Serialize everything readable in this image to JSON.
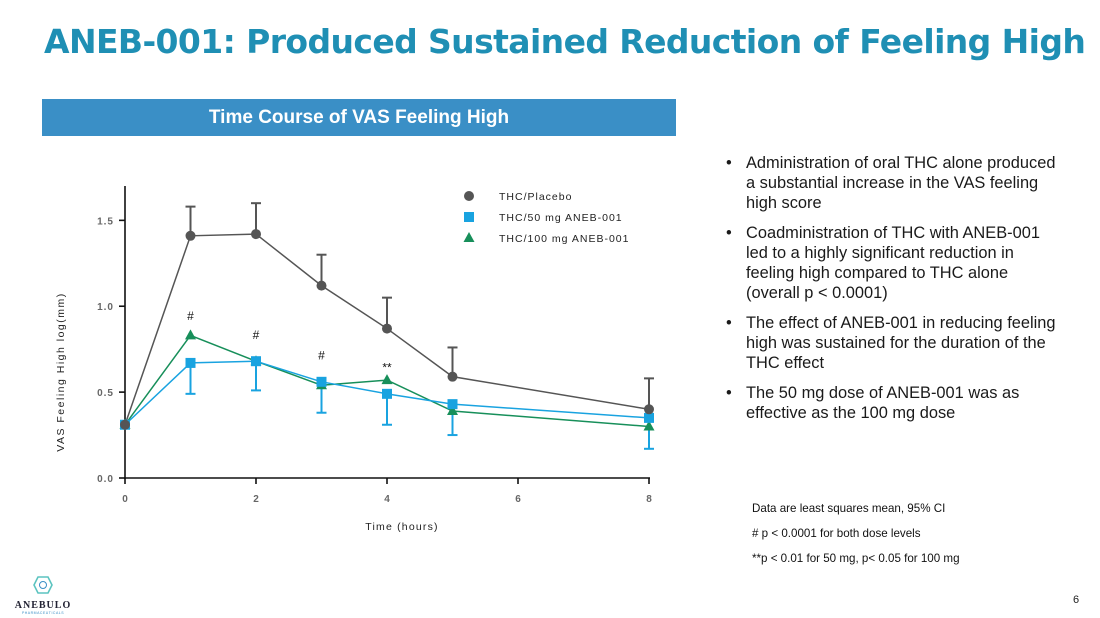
{
  "slide": {
    "title": "ANEB-001: Produced Sustained Reduction of Feeling High",
    "banner": "Time Course of VAS Feeling High",
    "page_number": "6",
    "logo": {
      "name": "ANEBULO",
      "sub": "PHARMACEUTICALS"
    }
  },
  "bullets": [
    "Administration of oral THC alone produced a substantial increase in the VAS feeling high score",
    "Coadministration of THC with ANEB-001 led to a highly significant reduction in feeling high compared to THC alone (overall p < 0.0001)",
    "The effect of ANEB-001 in reducing feeling high was sustained for the duration of the THC effect",
    "The 50 mg dose of ANEB-001 was as effective as the 100 mg dose"
  ],
  "bullet_glyph": "•",
  "notes": [
    "Data are least squares mean, 95% CI",
    "# p < 0.0001 for both dose levels",
    "**p < 0.01 for 50 mg, p< 0.05 for 100 mg"
  ],
  "chart_data": {
    "type": "line",
    "title": "Time Course of VAS Feeling High",
    "xlabel": "Time (hours)",
    "ylabel": "VAS Feeling High log(mm)",
    "xlim": [
      0,
      8
    ],
    "ylim": [
      0,
      1.7
    ],
    "xticks": [
      0,
      2,
      4,
      6,
      8
    ],
    "xtick_labels": [
      "0",
      "2",
      "4",
      "6",
      "8"
    ],
    "yticks": [
      0,
      0.5,
      1.0,
      1.5
    ],
    "ytick_labels": [
      "0.0",
      "0.5",
      "1.0",
      "1.5"
    ],
    "grid": false,
    "legend_position": "top-right",
    "x": [
      0,
      1,
      2,
      3,
      4,
      5,
      8
    ],
    "series": [
      {
        "name": "THC/Placebo",
        "marker": "circle",
        "color": "#555555",
        "values": [
          0.31,
          1.41,
          1.42,
          1.12,
          0.87,
          0.59,
          0.4
        ],
        "error_upper": [
          null,
          1.58,
          1.6,
          1.3,
          1.05,
          0.76,
          0.58
        ]
      },
      {
        "name": "THC/50 mg ANEB-001",
        "marker": "square",
        "color": "#19a3e0",
        "values": [
          0.31,
          0.67,
          0.68,
          0.56,
          0.49,
          0.43,
          0.35
        ],
        "error_lower": [
          null,
          0.49,
          0.51,
          0.38,
          0.31,
          0.25,
          0.17
        ]
      },
      {
        "name": "THC/100 mg ANEB-001",
        "marker": "triangle",
        "color": "#178f5a",
        "values": [
          0.31,
          0.83,
          0.68,
          0.54,
          0.57,
          0.39,
          0.3
        ]
      }
    ],
    "annotations": [
      {
        "x": 1,
        "y": 0.92,
        "text": "#"
      },
      {
        "x": 2,
        "y": 0.81,
        "text": "#"
      },
      {
        "x": 3,
        "y": 0.69,
        "text": "#"
      },
      {
        "x": 4,
        "y": 0.62,
        "text": "**"
      }
    ]
  }
}
